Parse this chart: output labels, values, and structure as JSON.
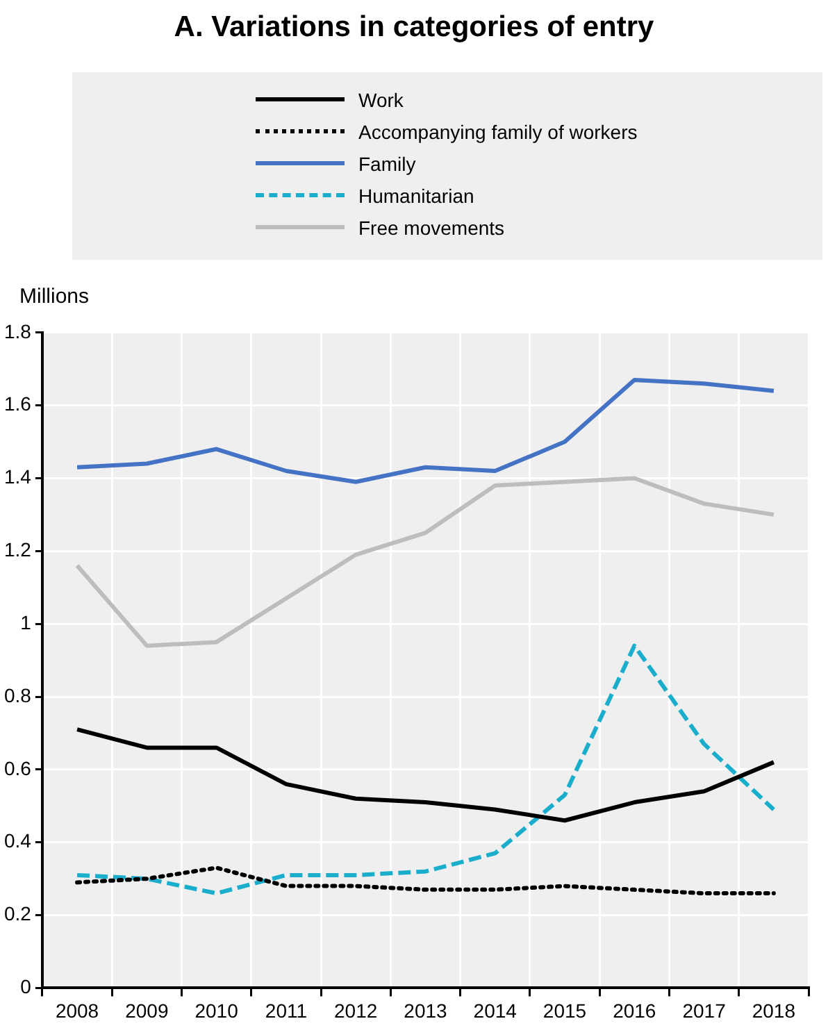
{
  "chart_data": {
    "type": "line",
    "title": "A. Variations in categories of entry",
    "ylabel": "Millions",
    "categories": [
      "2008",
      "2009",
      "2010",
      "2011",
      "2012",
      "2013",
      "2014",
      "2015",
      "2016",
      "2017",
      "2018"
    ],
    "series": [
      {
        "name": "Work",
        "color": "#000000",
        "line_style": "solid",
        "values": [
          0.71,
          0.66,
          0.66,
          0.56,
          0.52,
          0.51,
          0.49,
          0.46,
          0.51,
          0.54,
          0.62
        ]
      },
      {
        "name": "Accompanying family of workers",
        "color": "#000000",
        "line_style": "dotted",
        "values": [
          0.29,
          0.3,
          0.33,
          0.28,
          0.28,
          0.27,
          0.27,
          0.28,
          0.27,
          0.26,
          0.26
        ]
      },
      {
        "name": "Family",
        "color": "#4472c4",
        "line_style": "solid",
        "values": [
          1.43,
          1.44,
          1.48,
          1.42,
          1.39,
          1.43,
          1.42,
          1.5,
          1.67,
          1.66,
          1.64
        ]
      },
      {
        "name": "Humanitarian",
        "color": "#1aaecc",
        "line_style": "dashed",
        "values": [
          0.31,
          0.3,
          0.26,
          0.31,
          0.31,
          0.32,
          0.37,
          0.53,
          0.94,
          0.67,
          0.49
        ]
      },
      {
        "name": "Free movements",
        "color": "#bdbdbd",
        "line_style": "solid",
        "values": [
          1.16,
          0.94,
          0.95,
          1.07,
          1.19,
          1.25,
          1.38,
          1.39,
          1.4,
          1.33,
          1.3
        ]
      }
    ],
    "ylim": [
      0,
      1.8
    ],
    "yticks": [
      0,
      0.2,
      0.4,
      0.6,
      0.8,
      1,
      1.2,
      1.4,
      1.6,
      1.8
    ],
    "grid": true,
    "legend": "top",
    "marker": "none"
  }
}
